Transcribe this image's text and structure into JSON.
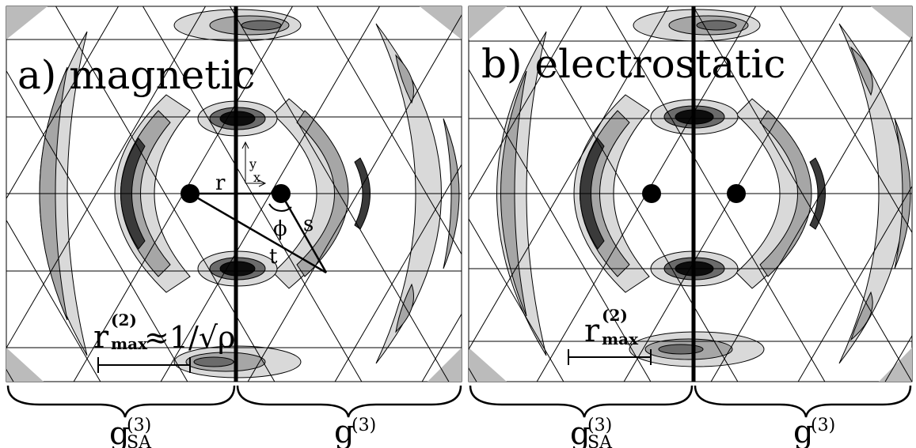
{
  "panels": [
    {
      "id": "magnetic",
      "title": "a) magnetic",
      "symbols": {
        "r": "r",
        "s": "s",
        "t": "t",
        "phi": "ϕ",
        "axis_x": "x",
        "axis_y": "y"
      },
      "rmax": {
        "base": "r",
        "sup": "(2)",
        "sub": "max",
        "tail": "≈1/√ρ"
      },
      "bottom_labels": {
        "left": {
          "base": "g",
          "sup": "(3)",
          "sub": "SA"
        },
        "right": {
          "base": "g",
          "sup": "(3)"
        }
      }
    },
    {
      "id": "electrostatic",
      "title": "b) electrostatic",
      "rmax": {
        "base": "r",
        "sup": "(2)",
        "sub": "max"
      },
      "bottom_labels": {
        "left": {
          "base": "g",
          "sup": "(3)",
          "sub": "SA"
        },
        "right": {
          "base": "g",
          "sup": "(3)"
        }
      }
    }
  ],
  "colors": {
    "background": "#ffffff",
    "shade_light": "#d9d9d9",
    "shade_mid": "#a6a6a6",
    "shade_dark": "#6b6b6b",
    "shade_darker": "#3a3a3a",
    "shade_black": "#0d0d0d",
    "line": "#000000"
  }
}
